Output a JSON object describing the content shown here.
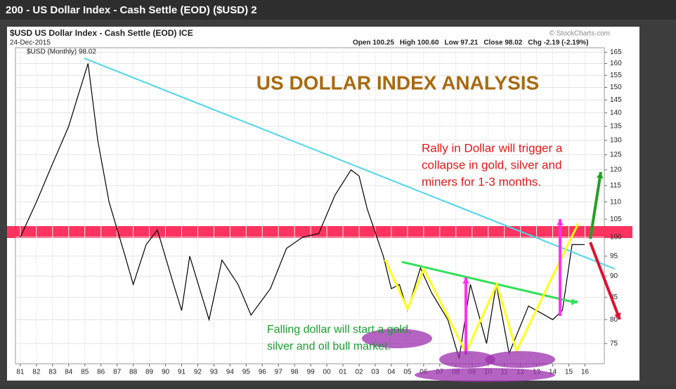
{
  "window_title": "200 - US Dollar Index - Cash Settle (EOD) ($USD) 2",
  "chart_data": {
    "type": "line",
    "symbol_header": "$USD US Dollar Index - Cash Settle (EOD) ICE",
    "date": "24-Dec-2015",
    "ohlc": [
      "Open 100.25",
      "High 100.60",
      "Low 97.21",
      "Close 98.02",
      "Chg -2.19 (-2.19%)"
    ],
    "credit": "© StockCharts.com",
    "title": "US DOLLAR INDEX ANALYSIS",
    "annotations": {
      "rally": [
        "Rally in Dollar will trigger a",
        "collapse in gold, silver and",
        "miners for 1-3 months."
      ],
      "falling": [
        "Falling dollar will start a gold,",
        "silver and oil bull market."
      ]
    },
    "series": [
      {
        "name": "$USD (Monthly) 98.02",
        "color": "#000000",
        "x": [
          1981.0,
          1982.0,
          1983.0,
          1984.0,
          1984.5,
          1985.2,
          1985.8,
          1986.5,
          1987.5,
          1988.0,
          1988.8,
          1989.5,
          1990.5,
          1991.0,
          1991.5,
          1992.7,
          1993.5,
          1994.5,
          1995.3,
          1996.5,
          1997.5,
          1998.5,
          1999.5,
          2000.5,
          2001.5,
          2002.0,
          2002.5,
          2003.5,
          2004.0,
          2004.5,
          2005.0,
          2005.8,
          2006.5,
          2007.5,
          2008.2,
          2008.9,
          2009.5,
          2009.9,
          2010.5,
          2011.3,
          2012.5,
          2013.5,
          2014.0,
          2014.6,
          2015.2,
          2015.98
        ],
        "values": [
          100,
          110,
          122,
          135,
          145,
          160,
          130,
          110,
          95,
          88,
          98,
          102,
          88,
          82,
          95,
          80,
          94,
          88,
          81,
          87,
          97,
          100,
          101,
          112,
          120,
          118,
          108,
          95,
          87,
          88,
          82,
          92,
          86,
          80,
          72,
          88,
          80,
          75,
          88,
          73,
          83,
          81,
          80,
          82,
          98,
          98.02
        ]
      }
    ],
    "xlim": [
      1980.7,
      2017.2
    ],
    "xticks": [
      {
        "value": 1981,
        "label": "81"
      },
      {
        "value": 1982,
        "label": "82"
      },
      {
        "value": 1983,
        "label": "83"
      },
      {
        "value": 1984,
        "label": "84"
      },
      {
        "value": 1985,
        "label": "85"
      },
      {
        "value": 1986,
        "label": "86"
      },
      {
        "value": 1987,
        "label": "87"
      },
      {
        "value": 1988,
        "label": "88"
      },
      {
        "value": 1989,
        "label": "89"
      },
      {
        "value": 1990,
        "label": "90"
      },
      {
        "value": 1991,
        "label": "91"
      },
      {
        "value": 1992,
        "label": "92"
      },
      {
        "value": 1993,
        "label": "93"
      },
      {
        "value": 1994,
        "label": "94"
      },
      {
        "value": 1995,
        "label": "95"
      },
      {
        "value": 1996,
        "label": "96"
      },
      {
        "value": 1997,
        "label": "97"
      },
      {
        "value": 1998,
        "label": "98"
      },
      {
        "value": 1999,
        "label": "99"
      },
      {
        "value": 2000,
        "label": "00"
      },
      {
        "value": 2001,
        "label": "01"
      },
      {
        "value": 2002,
        "label": "02"
      },
      {
        "value": 2003,
        "label": "03"
      },
      {
        "value": 2004,
        "label": "04"
      },
      {
        "value": 2005,
        "label": "05"
      },
      {
        "value": 2006,
        "label": "06"
      },
      {
        "value": 2007,
        "label": "07"
      },
      {
        "value": 2008,
        "label": "08"
      },
      {
        "value": 2009,
        "label": "09"
      },
      {
        "value": 2010,
        "label": "10"
      },
      {
        "value": 2011,
        "label": "11"
      },
      {
        "value": 2012,
        "label": "12"
      },
      {
        "value": 2013,
        "label": "13"
      },
      {
        "value": 2014,
        "label": "14"
      },
      {
        "value": 2015,
        "label": "15"
      },
      {
        "value": 2016,
        "label": "16"
      }
    ],
    "ylim": [
      71,
      167
    ],
    "yticks": [
      75,
      80,
      85,
      90,
      95,
      100,
      105,
      110,
      115,
      120,
      125,
      130,
      135,
      140,
      145,
      150,
      155,
      160,
      165
    ],
    "log_scale": true,
    "grid": true
  }
}
